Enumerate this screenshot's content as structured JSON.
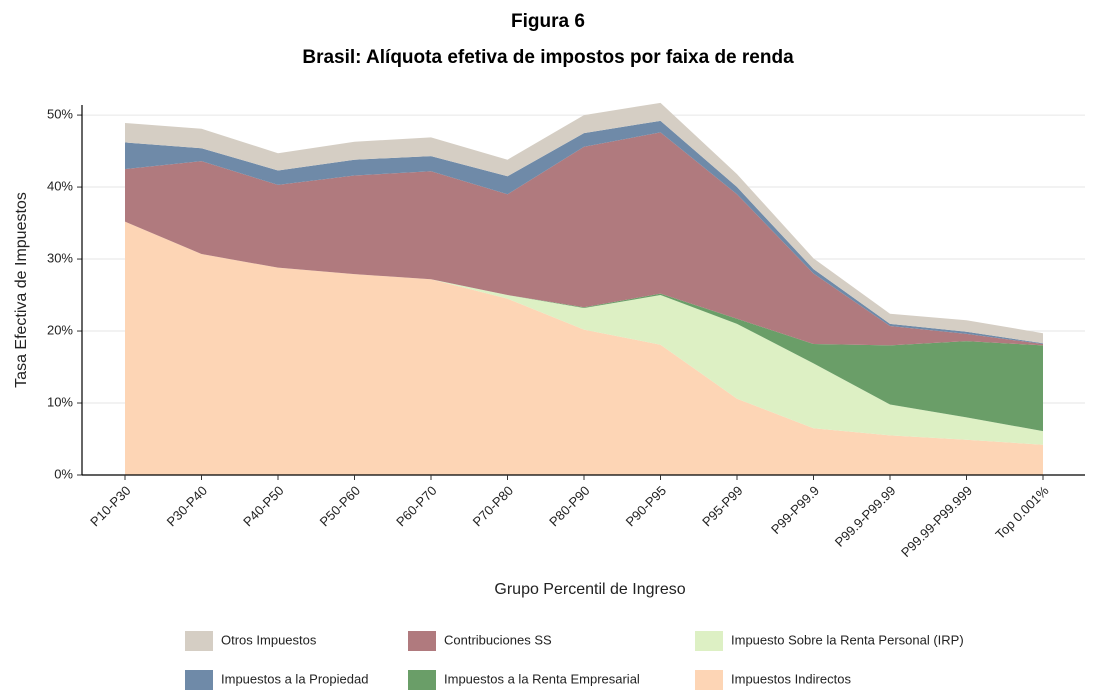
{
  "chart_data": {
    "type": "stacked_area",
    "title": "Figura 6",
    "subtitle": "Brasil: Alíquota efetiva de impostos por faixa de renda",
    "x_label": "Grupo Percentil de Ingreso",
    "y_label": "Tasa Efectiva de Impuestos",
    "categories": [
      "P10-P30",
      "P30-P40",
      "P40-P50",
      "P50-P60",
      "P60-P70",
      "P70-P80",
      "P80-P90",
      "P90-P95",
      "P95-P99",
      "P99-P99.9",
      "P99.9-P99.99",
      "P99.99-P99.999",
      "Top 0.001%"
    ],
    "series": [
      {
        "name": "Impuestos Indirectos",
        "color": "#fdd5b5",
        "values": [
          35.2,
          30.7,
          28.8,
          27.9,
          27.2,
          24.5,
          20.2,
          18.1,
          10.6,
          6.5,
          5.5,
          4.9,
          4.2
        ]
      },
      {
        "name": "Impuesto Sobre la Renta Personal (IRP)",
        "color": "#ddf0c4",
        "values": [
          0,
          0,
          0,
          0,
          0,
          0.5,
          3.0,
          6.9,
          10.4,
          9.0,
          4.3,
          3.1,
          1.9
        ]
      },
      {
        "name": "Impuestos a la Renta Empresarial",
        "color": "#6a9e68",
        "values": [
          0,
          0,
          0,
          0,
          0,
          0,
          0.1,
          0.2,
          0.7,
          2.7,
          8.2,
          10.6,
          11.9
        ]
      },
      {
        "name": "Contribuciones SS",
        "color": "#b07a7e",
        "values": [
          7.3,
          12.9,
          11.5,
          13.7,
          15.0,
          14.0,
          22.3,
          22.4,
          17.3,
          9.8,
          2.7,
          1.0,
          0.2
        ]
      },
      {
        "name": "Impuestos a la Propiedad",
        "color": "#6f8aa8",
        "values": [
          3.7,
          1.8,
          2.0,
          2.2,
          2.1,
          2.5,
          1.9,
          1.6,
          1.0,
          0.6,
          0.3,
          0.3,
          0.1
        ]
      },
      {
        "name": "Otros Impuestos",
        "color": "#d5cec4",
        "values": [
          2.7,
          2.7,
          2.4,
          2.5,
          2.6,
          2.3,
          2.5,
          2.5,
          1.8,
          1.5,
          1.4,
          1.6,
          1.4
        ]
      }
    ],
    "ylim": [
      0,
      51.4
    ],
    "yticks": [
      {
        "value": 0,
        "label": "0%"
      },
      {
        "value": 10,
        "label": "10%"
      },
      {
        "value": 20,
        "label": "20%"
      },
      {
        "value": 30,
        "label": "30%"
      },
      {
        "value": 40,
        "label": "40%"
      },
      {
        "value": 50,
        "label": "50%"
      }
    ],
    "grid": true
  }
}
